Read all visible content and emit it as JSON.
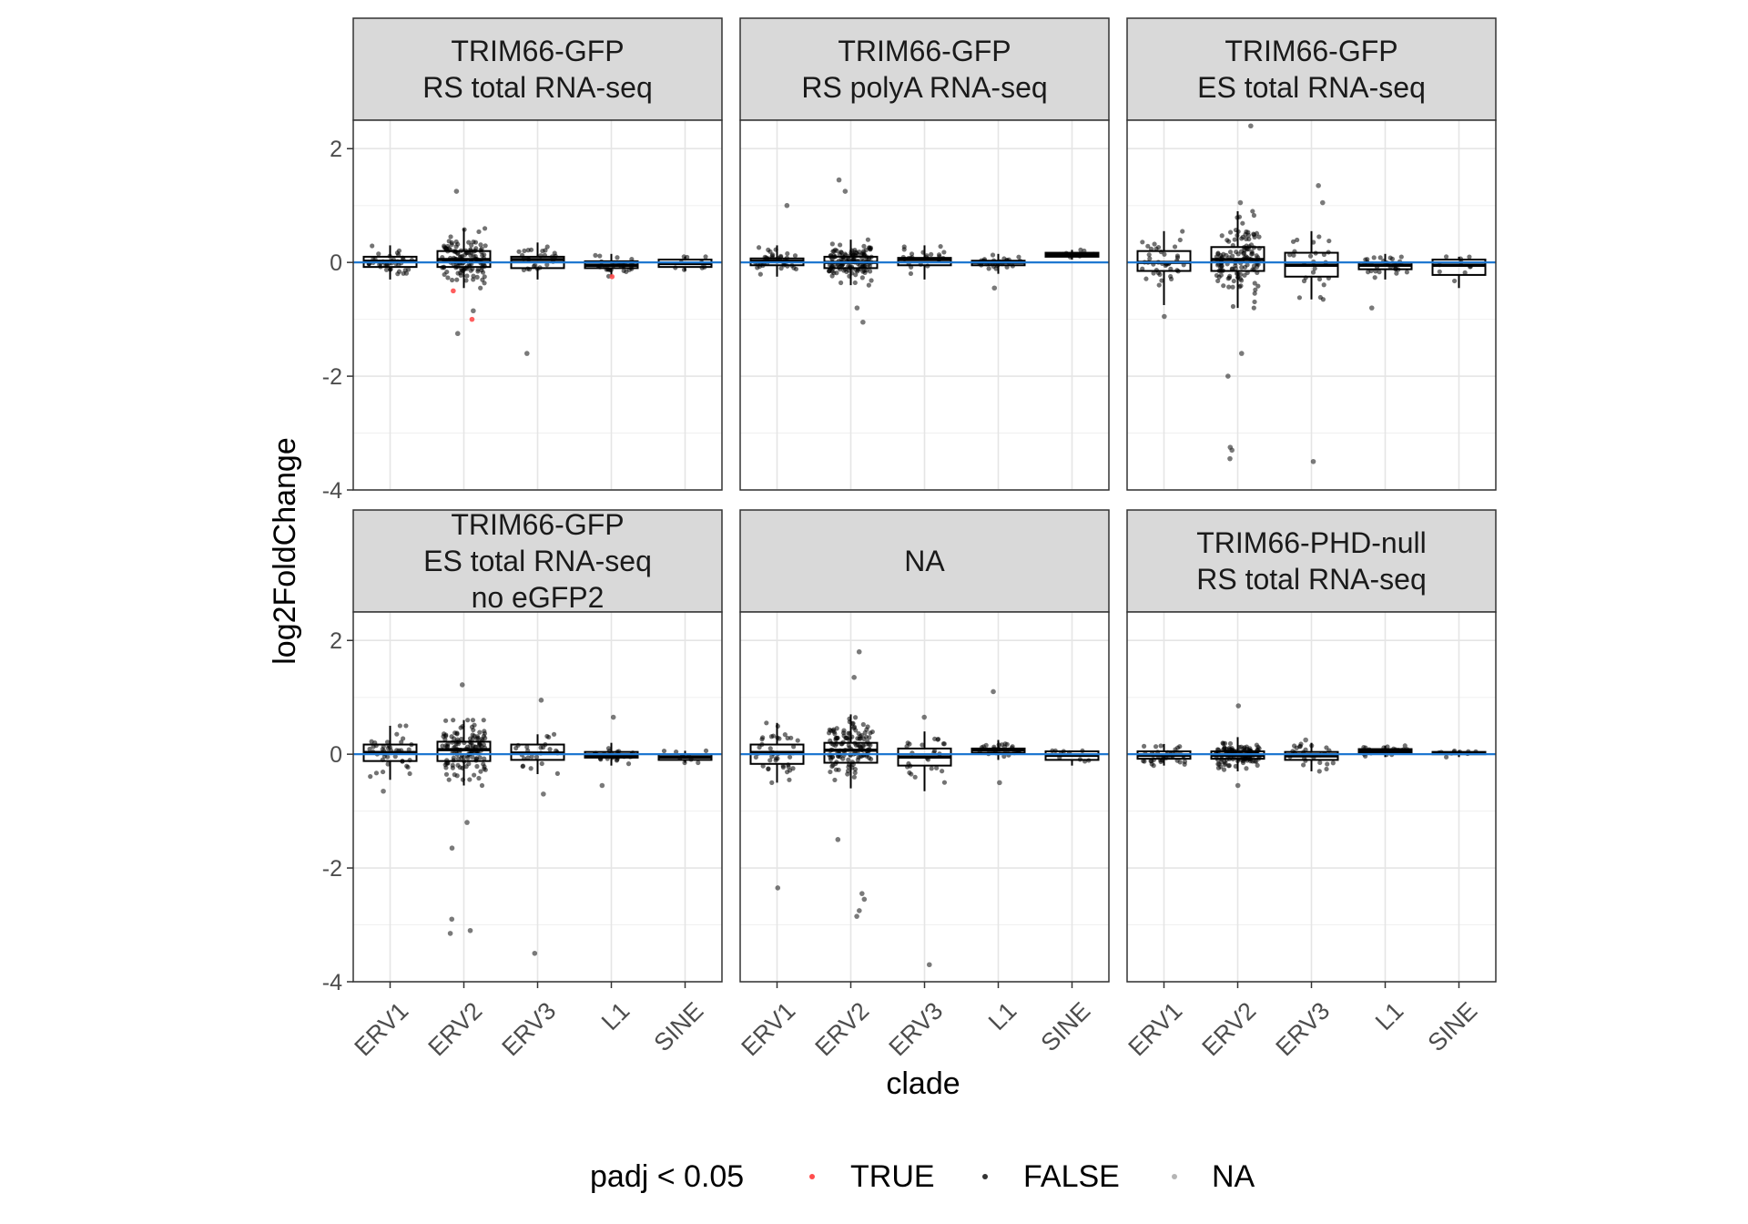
{
  "chart_data": {
    "type": "box",
    "title": "",
    "xlabel": "clade",
    "ylabel": "log2FoldChange",
    "categories": [
      "ERV1",
      "ERV2",
      "ERV3",
      "L1",
      "SINE"
    ],
    "ylim": [
      -4,
      2.5
    ],
    "yticks": [
      -4,
      -2,
      0,
      2
    ],
    "grid": true,
    "reference_line": {
      "y": 0,
      "color": "#1f78d1"
    },
    "legend": {
      "title": "padj < 0.05",
      "position": "bottom",
      "entries": [
        {
          "label": "TRUE",
          "color": "#ff4d4d"
        },
        {
          "label": "FALSE",
          "color": "#333333"
        },
        {
          "label": "NA",
          "color": "#b5b5b5"
        }
      ]
    },
    "panels": [
      {
        "title_lines": [
          "TRIM66-GFP",
          "RS total RNA-seq"
        ],
        "boxes": [
          {
            "category": "ERV1",
            "q1": -0.08,
            "median": 0.02,
            "q3": 0.1,
            "whisker_low": -0.3,
            "whisker_high": 0.3
          },
          {
            "category": "ERV2",
            "q1": -0.08,
            "median": 0.05,
            "q3": 0.2,
            "whisker_low": -0.45,
            "whisker_high": 0.6
          },
          {
            "category": "ERV3",
            "q1": -0.1,
            "median": 0.05,
            "q3": 0.1,
            "whisker_low": -0.3,
            "whisker_high": 0.35
          },
          {
            "category": "L1",
            "q1": -0.1,
            "median": -0.05,
            "q3": 0.02,
            "whisker_low": -0.25,
            "whisker_high": 0.15
          },
          {
            "category": "SINE",
            "q1": -0.08,
            "median": -0.02,
            "q3": 0.05,
            "whisker_low": -0.15,
            "whisker_high": 0.1
          }
        ],
        "outliers": [
          {
            "category": "ERV2",
            "y": 1.25,
            "sig": "FALSE"
          },
          {
            "category": "ERV2",
            "y": -0.5,
            "sig": "TRUE"
          },
          {
            "category": "ERV2",
            "y": -1.0,
            "sig": "TRUE"
          },
          {
            "category": "ERV2",
            "y": -1.25,
            "sig": "FALSE"
          },
          {
            "category": "ERV2",
            "y": -0.85,
            "sig": "FALSE"
          },
          {
            "category": "ERV3",
            "y": -1.6,
            "sig": "FALSE"
          },
          {
            "category": "L1",
            "y": -0.25,
            "sig": "TRUE"
          }
        ]
      },
      {
        "title_lines": [
          "TRIM66-GFP",
          "RS polyA RNA-seq"
        ],
        "boxes": [
          {
            "category": "ERV1",
            "q1": -0.05,
            "median": 0.02,
            "q3": 0.07,
            "whisker_low": -0.25,
            "whisker_high": 0.3
          },
          {
            "category": "ERV2",
            "q1": -0.1,
            "median": 0.0,
            "q3": 0.1,
            "whisker_low": -0.4,
            "whisker_high": 0.4
          },
          {
            "category": "ERV3",
            "q1": -0.05,
            "median": 0.05,
            "q3": 0.08,
            "whisker_low": -0.3,
            "whisker_high": 0.3
          },
          {
            "category": "L1",
            "q1": -0.05,
            "median": 0.0,
            "q3": 0.03,
            "whisker_low": -0.2,
            "whisker_high": 0.15
          },
          {
            "category": "SINE",
            "q1": 0.1,
            "median": 0.14,
            "q3": 0.17,
            "whisker_low": 0.05,
            "whisker_high": 0.22
          }
        ],
        "outliers": [
          {
            "category": "ERV1",
            "y": 1.0,
            "sig": "FALSE"
          },
          {
            "category": "ERV2",
            "y": 1.45,
            "sig": "FALSE"
          },
          {
            "category": "ERV2",
            "y": 1.25,
            "sig": "FALSE"
          },
          {
            "category": "ERV2",
            "y": -1.05,
            "sig": "FALSE"
          },
          {
            "category": "ERV2",
            "y": -0.8,
            "sig": "FALSE"
          },
          {
            "category": "L1",
            "y": -0.45,
            "sig": "FALSE"
          }
        ]
      },
      {
        "title_lines": [
          "TRIM66-GFP",
          "ES total RNA-seq"
        ],
        "boxes": [
          {
            "category": "ERV1",
            "q1": -0.15,
            "median": 0.0,
            "q3": 0.2,
            "whisker_low": -0.75,
            "whisker_high": 0.55
          },
          {
            "category": "ERV2",
            "q1": -0.15,
            "median": 0.05,
            "q3": 0.27,
            "whisker_low": -0.8,
            "whisker_high": 0.9
          },
          {
            "category": "ERV3",
            "q1": -0.25,
            "median": -0.05,
            "q3": 0.17,
            "whisker_low": -0.65,
            "whisker_high": 0.55
          },
          {
            "category": "L1",
            "q1": -0.12,
            "median": -0.05,
            "q3": 0.0,
            "whisker_low": -0.3,
            "whisker_high": 0.15
          },
          {
            "category": "SINE",
            "q1": -0.22,
            "median": -0.05,
            "q3": 0.05,
            "whisker_low": -0.45,
            "whisker_high": 0.1
          }
        ],
        "outliers": [
          {
            "category": "ERV1",
            "y": -0.95,
            "sig": "FALSE"
          },
          {
            "category": "ERV2",
            "y": 2.4,
            "sig": "FALSE"
          },
          {
            "category": "ERV2",
            "y": 1.05,
            "sig": "FALSE"
          },
          {
            "category": "ERV2",
            "y": -1.6,
            "sig": "FALSE"
          },
          {
            "category": "ERV2",
            "y": -2.0,
            "sig": "FALSE"
          },
          {
            "category": "ERV2",
            "y": -3.25,
            "sig": "FALSE"
          },
          {
            "category": "ERV2",
            "y": -3.45,
            "sig": "FALSE"
          },
          {
            "category": "ERV2",
            "y": -3.3,
            "sig": "FALSE"
          },
          {
            "category": "ERV3",
            "y": 1.35,
            "sig": "FALSE"
          },
          {
            "category": "ERV3",
            "y": 1.05,
            "sig": "FALSE"
          },
          {
            "category": "ERV3",
            "y": -3.5,
            "sig": "FALSE"
          },
          {
            "category": "L1",
            "y": -0.8,
            "sig": "FALSE"
          }
        ]
      },
      {
        "title_lines": [
          "TRIM66-GFP",
          "ES total RNA-seq",
          "no eGFP2"
        ],
        "boxes": [
          {
            "category": "ERV1",
            "q1": -0.12,
            "median": 0.03,
            "q3": 0.17,
            "whisker_low": -0.45,
            "whisker_high": 0.5
          },
          {
            "category": "ERV2",
            "q1": -0.12,
            "median": 0.08,
            "q3": 0.22,
            "whisker_low": -0.55,
            "whisker_high": 0.6
          },
          {
            "category": "ERV3",
            "q1": -0.1,
            "median": 0.02,
            "q3": 0.17,
            "whisker_low": -0.35,
            "whisker_high": 0.35
          },
          {
            "category": "L1",
            "q1": -0.06,
            "median": -0.02,
            "q3": 0.04,
            "whisker_low": -0.2,
            "whisker_high": 0.2
          },
          {
            "category": "SINE",
            "q1": -0.1,
            "median": -0.05,
            "q3": 0.0,
            "whisker_low": -0.15,
            "whisker_high": 0.06
          }
        ],
        "outliers": [
          {
            "category": "ERV1",
            "y": -0.65,
            "sig": "FALSE"
          },
          {
            "category": "ERV2",
            "y": 1.22,
            "sig": "FALSE"
          },
          {
            "category": "ERV2",
            "y": -1.2,
            "sig": "FALSE"
          },
          {
            "category": "ERV2",
            "y": -1.65,
            "sig": "FALSE"
          },
          {
            "category": "ERV2",
            "y": -2.9,
            "sig": "FALSE"
          },
          {
            "category": "ERV2",
            "y": -3.1,
            "sig": "FALSE"
          },
          {
            "category": "ERV2",
            "y": -3.15,
            "sig": "FALSE"
          },
          {
            "category": "ERV3",
            "y": 0.95,
            "sig": "FALSE"
          },
          {
            "category": "ERV3",
            "y": -0.7,
            "sig": "FALSE"
          },
          {
            "category": "ERV3",
            "y": -3.5,
            "sig": "FALSE"
          },
          {
            "category": "L1",
            "y": 0.65,
            "sig": "FALSE"
          },
          {
            "category": "L1",
            "y": -0.55,
            "sig": "FALSE"
          }
        ]
      },
      {
        "title_lines": [
          "NA"
        ],
        "boxes": [
          {
            "category": "ERV1",
            "q1": -0.17,
            "median": 0.03,
            "q3": 0.17,
            "whisker_low": -0.5,
            "whisker_high": 0.55
          },
          {
            "category": "ERV2",
            "q1": -0.15,
            "median": 0.07,
            "q3": 0.2,
            "whisker_low": -0.6,
            "whisker_high": 0.7
          },
          {
            "category": "ERV3",
            "q1": -0.2,
            "median": -0.05,
            "q3": 0.1,
            "whisker_low": -0.65,
            "whisker_high": 0.4
          },
          {
            "category": "L1",
            "q1": 0.02,
            "median": 0.07,
            "q3": 0.1,
            "whisker_low": -0.1,
            "whisker_high": 0.25
          },
          {
            "category": "SINE",
            "q1": -0.1,
            "median": -0.02,
            "q3": 0.05,
            "whisker_low": -0.2,
            "whisker_high": 0.06
          }
        ],
        "outliers": [
          {
            "category": "ERV1",
            "y": -2.35,
            "sig": "FALSE"
          },
          {
            "category": "ERV2",
            "y": 1.8,
            "sig": "FALSE"
          },
          {
            "category": "ERV2",
            "y": 1.35,
            "sig": "FALSE"
          },
          {
            "category": "ERV2",
            "y": -1.5,
            "sig": "FALSE"
          },
          {
            "category": "ERV2",
            "y": -2.45,
            "sig": "FALSE"
          },
          {
            "category": "ERV2",
            "y": -2.55,
            "sig": "FALSE"
          },
          {
            "category": "ERV2",
            "y": -2.75,
            "sig": "FALSE"
          },
          {
            "category": "ERV2",
            "y": -2.85,
            "sig": "FALSE"
          },
          {
            "category": "ERV3",
            "y": 0.65,
            "sig": "FALSE"
          },
          {
            "category": "ERV3",
            "y": -3.7,
            "sig": "FALSE"
          },
          {
            "category": "L1",
            "y": 1.1,
            "sig": "FALSE"
          },
          {
            "category": "L1",
            "y": -0.5,
            "sig": "FALSE"
          }
        ]
      },
      {
        "title_lines": [
          "TRIM66-PHD-null",
          "RS total RNA-seq"
        ],
        "boxes": [
          {
            "category": "ERV1",
            "q1": -0.08,
            "median": -0.02,
            "q3": 0.05,
            "whisker_low": -0.2,
            "whisker_high": 0.18
          },
          {
            "category": "ERV2",
            "q1": -0.08,
            "median": -0.02,
            "q3": 0.05,
            "whisker_low": -0.3,
            "whisker_high": 0.3
          },
          {
            "category": "ERV3",
            "q1": -0.1,
            "median": -0.03,
            "q3": 0.04,
            "whisker_low": -0.3,
            "whisker_high": 0.2
          },
          {
            "category": "L1",
            "q1": 0.03,
            "median": 0.06,
            "q3": 0.09,
            "whisker_low": -0.05,
            "whisker_high": 0.15
          },
          {
            "category": "SINE",
            "q1": 0.0,
            "median": 0.02,
            "q3": 0.04,
            "whisker_low": -0.05,
            "whisker_high": 0.07
          }
        ],
        "outliers": [
          {
            "category": "ERV2",
            "y": 0.85,
            "sig": "FALSE"
          },
          {
            "category": "ERV2",
            "y": -0.55,
            "sig": "FALSE"
          },
          {
            "category": "ERV3",
            "y": 0.25,
            "sig": "FALSE"
          }
        ]
      }
    ]
  }
}
